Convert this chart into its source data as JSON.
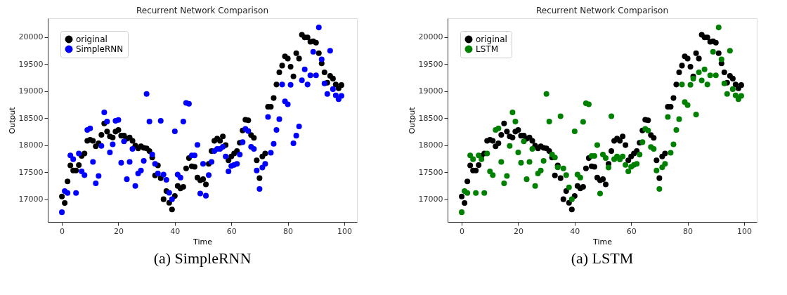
{
  "chart_data": [
    {
      "type": "scatter",
      "title": "Recurrent Network Comparison",
      "xlabel": "Time",
      "ylabel": "Output",
      "annotations": [
        "(a) SimpleRNN"
      ],
      "legend": "top left",
      "marker": "circle",
      "grid": false,
      "xlim": [
        -5,
        104.5
      ],
      "ylim": [
        16580,
        20345
      ],
      "xticks": [
        0,
        20,
        40,
        60,
        80,
        100
      ],
      "yticks": [
        17000,
        17500,
        18000,
        18500,
        19000,
        19500,
        20000
      ],
      "x": [
        0,
        1,
        2,
        3,
        4,
        5,
        6,
        7,
        8,
        9,
        10,
        11,
        12,
        13,
        14,
        15,
        16,
        17,
        18,
        19,
        20,
        21,
        22,
        23,
        24,
        25,
        26,
        27,
        28,
        29,
        30,
        31,
        32,
        33,
        34,
        35,
        36,
        37,
        38,
        39,
        40,
        41,
        42,
        43,
        44,
        45,
        46,
        47,
        48,
        49,
        50,
        51,
        52,
        53,
        54,
        55,
        56,
        57,
        58,
        59,
        60,
        61,
        62,
        63,
        64,
        65,
        66,
        67,
        68,
        69,
        70,
        71,
        72,
        73,
        74,
        75,
        76,
        77,
        78,
        79,
        80,
        81,
        82,
        83,
        84,
        85,
        86,
        87,
        88,
        89,
        90,
        91,
        92,
        93,
        94,
        95,
        96,
        97,
        98,
        99
      ],
      "series": [
        {
          "name": "original",
          "color": "#000000",
          "values": [
            17050,
            16930,
            17330,
            17625,
            17530,
            17530,
            17630,
            17800,
            17845,
            18080,
            18100,
            18080,
            17980,
            18035,
            18190,
            18400,
            18250,
            18160,
            18140,
            18250,
            18280,
            18175,
            18175,
            18120,
            18140,
            18080,
            17990,
            17940,
            17980,
            17950,
            17940,
            17890,
            17770,
            17440,
            17625,
            17390,
            17000,
            17150,
            16935,
            16810,
            17060,
            17245,
            17200,
            17230,
            17570,
            17760,
            17610,
            17600,
            17400,
            17350,
            17370,
            17275,
            17655,
            17890,
            18080,
            18120,
            18080,
            18160,
            18000,
            17720,
            17790,
            17845,
            17890,
            18045,
            18270,
            18470,
            18460,
            18185,
            18135,
            17720,
            17390,
            17790,
            17845,
            18710,
            18710,
            18870,
            19120,
            19345,
            19470,
            19640,
            19600,
            19450,
            19270,
            19700,
            19600,
            20040,
            19990,
            19990,
            19910,
            19920,
            19895,
            19700,
            19510,
            19345,
            19155,
            19280,
            19230,
            19120,
            19050,
            19110
          ]
        },
        {
          "name": "SimpleRNN",
          "color": "#0000ff",
          "values": [
            16760,
            17150,
            17115,
            17810,
            17740,
            17115,
            17845,
            17515,
            17445,
            18280,
            18310,
            17690,
            17295,
            17430,
            17985,
            18605,
            18435,
            17865,
            18015,
            18450,
            18465,
            17675,
            18070,
            17370,
            17690,
            17930,
            17245,
            17475,
            17530,
            17710,
            18945,
            18435,
            17825,
            17655,
            17475,
            18450,
            17455,
            17360,
            17120,
            17000,
            18255,
            17455,
            17400,
            18435,
            18780,
            18765,
            17810,
            17810,
            18005,
            17105,
            17655,
            17065,
            17445,
            17690,
            17890,
            17930,
            17930,
            17970,
            17790,
            17515,
            17615,
            17635,
            17655,
            17825,
            18055,
            18300,
            18260,
            17970,
            17930,
            17530,
            17190,
            17585,
            17655,
            18520,
            17860,
            18025,
            18280,
            18480,
            19120,
            18810,
            18755,
            19115,
            18035,
            18175,
            18345,
            19200,
            19400,
            19120,
            19290,
            19725,
            19290,
            20175,
            19585,
            19140,
            18945,
            19745,
            19035,
            18920,
            18850,
            18910
          ]
        }
      ]
    },
    {
      "type": "scatter",
      "title": "Recurrent Network Comparison",
      "xlabel": "Time",
      "ylabel": "Output",
      "annotations": [
        "(a) LSTM"
      ],
      "legend": "top left",
      "marker": "circle",
      "grid": false,
      "xlim": [
        -5,
        104.5
      ],
      "ylim": [
        16580,
        20345
      ],
      "xticks": [
        0,
        20,
        40,
        60,
        80,
        100
      ],
      "yticks": [
        17000,
        17500,
        18000,
        18500,
        19000,
        19500,
        20000
      ],
      "x": [
        0,
        1,
        2,
        3,
        4,
        5,
        6,
        7,
        8,
        9,
        10,
        11,
        12,
        13,
        14,
        15,
        16,
        17,
        18,
        19,
        20,
        21,
        22,
        23,
        24,
        25,
        26,
        27,
        28,
        29,
        30,
        31,
        32,
        33,
        34,
        35,
        36,
        37,
        38,
        39,
        40,
        41,
        42,
        43,
        44,
        45,
        46,
        47,
        48,
        49,
        50,
        51,
        52,
        53,
        54,
        55,
        56,
        57,
        58,
        59,
        60,
        61,
        62,
        63,
        64,
        65,
        66,
        67,
        68,
        69,
        70,
        71,
        72,
        73,
        74,
        75,
        76,
        77,
        78,
        79,
        80,
        81,
        82,
        83,
        84,
        85,
        86,
        87,
        88,
        89,
        90,
        91,
        92,
        93,
        94,
        95,
        96,
        97,
        98,
        99
      ],
      "series": [
        {
          "name": "original",
          "color": "#000000",
          "values": [
            17050,
            16930,
            17330,
            17625,
            17530,
            17530,
            17630,
            17800,
            17845,
            18080,
            18100,
            18080,
            17980,
            18035,
            18190,
            18400,
            18250,
            18160,
            18140,
            18250,
            18280,
            18175,
            18175,
            18120,
            18140,
            18080,
            17990,
            17940,
            17980,
            17950,
            17940,
            17890,
            17770,
            17440,
            17625,
            17390,
            17000,
            17150,
            16935,
            16810,
            17060,
            17245,
            17200,
            17230,
            17570,
            17760,
            17610,
            17600,
            17400,
            17350,
            17370,
            17275,
            17655,
            17890,
            18080,
            18120,
            18080,
            18160,
            18000,
            17720,
            17790,
            17845,
            17890,
            18045,
            18270,
            18470,
            18460,
            18185,
            18135,
            17720,
            17390,
            17790,
            17845,
            18710,
            18710,
            18870,
            19120,
            19345,
            19470,
            19640,
            19600,
            19450,
            19270,
            19700,
            19600,
            20040,
            19990,
            19990,
            19910,
            19920,
            19895,
            19700,
            19510,
            19345,
            19155,
            19280,
            19230,
            19120,
            19050,
            19110
          ]
        },
        {
          "name": "LSTM",
          "color": "#008000",
          "values": [
            16760,
            17150,
            17115,
            17810,
            17740,
            17115,
            17810,
            17740,
            17115,
            17845,
            17515,
            17445,
            18280,
            18310,
            17690,
            17295,
            17430,
            17985,
            18605,
            18435,
            17865,
            17675,
            18070,
            17370,
            17690,
            17930,
            17245,
            17475,
            17530,
            17710,
            18945,
            18435,
            17825,
            17770,
            17590,
            18535,
            17570,
            17445,
            17220,
            17000,
            18255,
            17455,
            17400,
            18430,
            18775,
            18755,
            17800,
            17800,
            18000,
            17105,
            17825,
            17760,
            17585,
            18535,
            17740,
            17790,
            17735,
            17790,
            17635,
            17515,
            17600,
            17635,
            17655,
            17825,
            18055,
            18300,
            18270,
            17965,
            17930,
            17530,
            17190,
            17590,
            17655,
            18520,
            17860,
            18015,
            18280,
            18480,
            19120,
            18795,
            18740,
            19115,
            19230,
            18565,
            19345,
            19195,
            19400,
            19120,
            19290,
            19725,
            19290,
            20175,
            19585,
            19140,
            18945,
            19745,
            19035,
            18920,
            18850,
            18910
          ]
        }
      ]
    }
  ]
}
